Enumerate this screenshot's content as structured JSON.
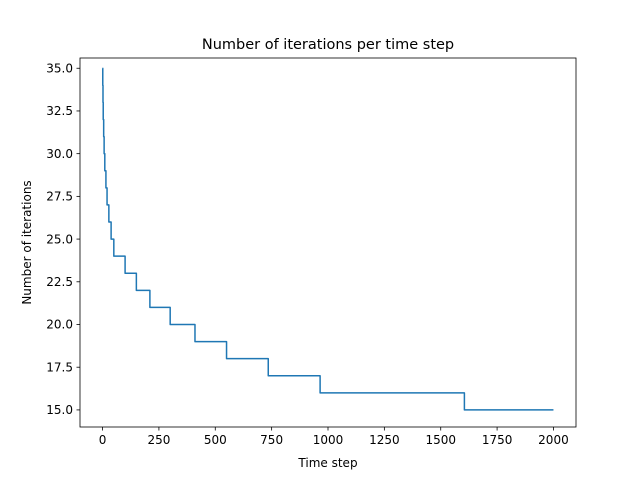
{
  "chart_data": {
    "type": "line",
    "title": "Number of iterations per time step",
    "xlabel": "Time step",
    "ylabel": "Number of iterations",
    "xlim": [
      -100,
      2100
    ],
    "ylim": [
      14.0,
      35.6
    ],
    "xticks": [
      0,
      250,
      500,
      750,
      1000,
      1250,
      1500,
      1750,
      2000
    ],
    "yticks": [
      15.0,
      17.5,
      20.0,
      22.5,
      25.0,
      27.5,
      30.0,
      32.5,
      35.0
    ],
    "xtick_labels": [
      "0",
      "250",
      "500",
      "750",
      "1000",
      "1250",
      "1500",
      "1750",
      "2000"
    ],
    "ytick_labels": [
      "15.0",
      "17.5",
      "20.0",
      "22.5",
      "25.0",
      "27.5",
      "30.0",
      "32.5",
      "35.0"
    ],
    "grid": false,
    "color": "#1f77b4",
    "series": [
      {
        "step": "post",
        "x": [
          0,
          1,
          2,
          3,
          5,
          7,
          10,
          15,
          20,
          28,
          38,
          50,
          70,
          100,
          150,
          210,
          300,
          410,
          550,
          735,
          965,
          1605,
          2000
        ],
        "values": [
          35,
          34,
          33,
          32,
          31,
          30,
          29,
          28,
          27,
          26,
          25,
          24,
          24,
          23,
          22,
          21,
          20,
          19,
          18,
          17,
          16,
          15,
          15
        ]
      }
    ]
  }
}
